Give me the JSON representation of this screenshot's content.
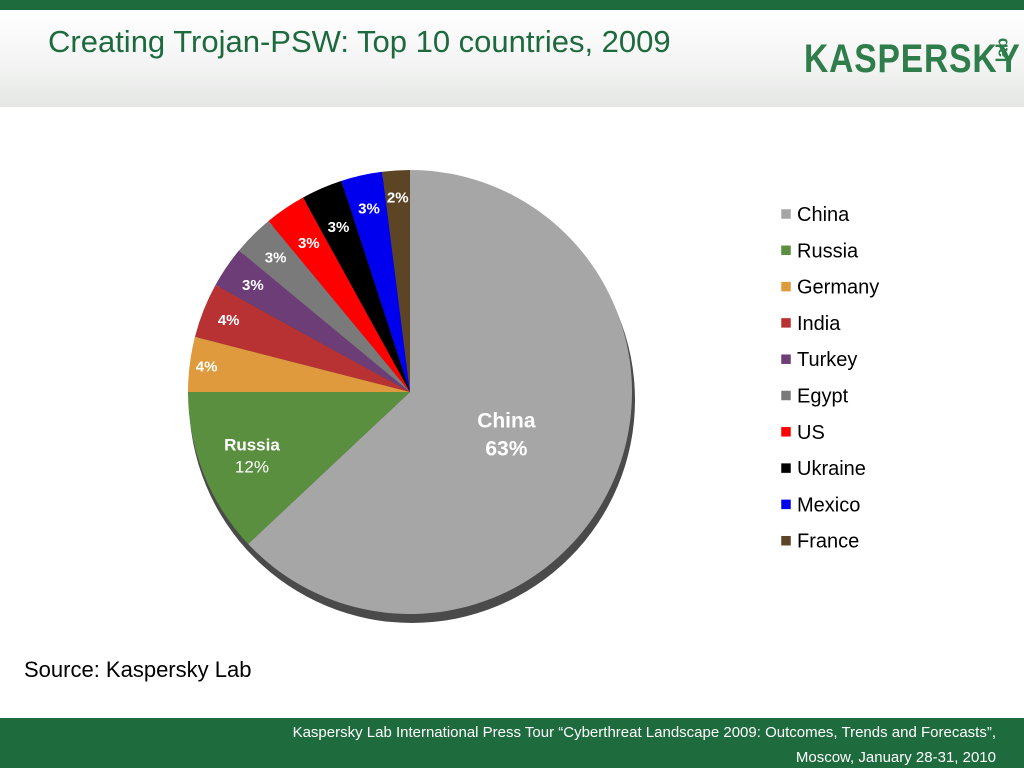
{
  "header": {
    "title": "Creating Trojan-PSW: Top 10 countries, 2009",
    "logo_text": "KASPERSKY",
    "logo_sub": "lab"
  },
  "chart_data": {
    "type": "pie",
    "title": "",
    "categories": [
      "China",
      "Russia",
      "Germany",
      "India",
      "Turkey",
      "Egypt",
      "US",
      "Ukraine",
      "Mexico",
      "France"
    ],
    "values": [
      63,
      12,
      4,
      4,
      3,
      3,
      3,
      3,
      3,
      2
    ],
    "value_labels": [
      "63%",
      "12%",
      "4%",
      "4%",
      "3%",
      "3%",
      "3%",
      "3%",
      "3%",
      "2%"
    ],
    "colors": [
      "#a6a6a6",
      "#5a8f3f",
      "#de9a3c",
      "#b83233",
      "#6c3d76",
      "#7a7a7a",
      "#ff0000",
      "#000000",
      "#0000ee",
      "#5d4424"
    ],
    "label_colors": [
      "#ffffff",
      "#ffffff",
      "#ffffff",
      "#ffffff",
      "#ffffff",
      "#ffffff",
      "#ffffff",
      "#ffffff",
      "#ffffff",
      "#ffffff"
    ],
    "label_show_category": [
      true,
      true,
      false,
      false,
      false,
      false,
      false,
      false,
      false,
      false
    ],
    "legend_position": "right",
    "start_angle_deg": 0,
    "direction": "clockwise"
  },
  "source": "Source: Kaspersky Lab",
  "footer": {
    "line1": "Kaspersky Lab International Press Tour “Cyberthreat Landscape 2009: Outcomes, Trends and Forecasts”,",
    "line2": "Moscow, January 28-31, 2010"
  }
}
